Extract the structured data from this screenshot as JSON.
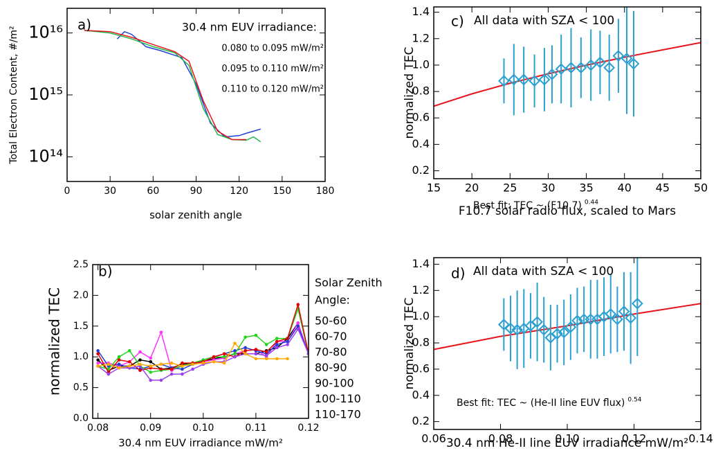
{
  "chart_data": [
    {
      "type": "line",
      "panel_label": "a)",
      "log_y": true,
      "xlabel": "solar zenith angle",
      "ylabel": "Total Electron Content, #/m²",
      "legend_title": [
        "30.4 nm EUV irradiance:"
      ],
      "xlim": [
        0,
        180
      ],
      "xticks": [
        0,
        30,
        60,
        90,
        120,
        150,
        180
      ],
      "ylim": [
        40000000000000.0,
        2.5e+16
      ],
      "yticks": [
        {
          "value": 100000000000000.0,
          "label": "10¹⁴"
        },
        {
          "value": 1000000000000000.0,
          "label": "10¹⁵"
        },
        {
          "value": 1e+16,
          "label": "10¹⁶"
        }
      ],
      "series": [
        {
          "name": "0.080 to 0.095 mW/m²",
          "color": "#1f3fd6",
          "x": [
            35,
            40,
            45,
            55,
            65,
            80,
            90,
            100,
            110,
            120,
            125,
            135
          ],
          "values": [
            8000000000000000.0,
            1.05e+16,
            9500000000000000.0,
            6000000000000000.0,
            5200000000000000.0,
            4000000000000000.0,
            1500000000000000.0,
            350000000000000.0,
            210000000000000.0,
            220000000000000.0,
            240000000000000.0,
            280000000000000.0
          ]
        },
        {
          "name": "0.095 to 0.110 mW/m²",
          "color": "#1fb84a",
          "x": [
            12,
            30,
            45,
            60,
            75,
            85,
            95,
            105,
            115,
            125,
            130,
            135
          ],
          "values": [
            1.1e+16,
            1e+16,
            8000000000000000.0,
            6000000000000000.0,
            4800000000000000.0,
            3000000000000000.0,
            600000000000000.0,
            230000000000000.0,
            190000000000000.0,
            185000000000000.0,
            210000000000000.0,
            175000000000000.0
          ]
        },
        {
          "name": "0.110 to 0.120 mW/m²",
          "color": "#e8141b",
          "x": [
            12,
            30,
            45,
            60,
            75,
            85,
            95,
            105,
            115,
            125
          ],
          "values": [
            1.1e+16,
            1.05e+16,
            8500000000000000.0,
            6500000000000000.0,
            5000000000000000.0,
            3500000000000000.0,
            800000000000000.0,
            260000000000000.0,
            190000000000000.0,
            190000000000000.0
          ]
        }
      ]
    },
    {
      "type": "line",
      "panel_label": "b)",
      "markers": true,
      "xlabel": "30.4 nm EUV irradiance mW/m²",
      "ylabel": "normalized TEC",
      "legend_title": [
        "Solar Zenith",
        "Angle:"
      ],
      "xlim": [
        0.079,
        0.12
      ],
      "xticks": [
        0.08,
        0.09,
        {
          "value": 0.1,
          "label": "0.10"
        },
        0.11,
        0.12
      ],
      "ylim": [
        0,
        2.5
      ],
      "yticks": [
        {
          "value": 0,
          "label": "0.0"
        },
        0.5,
        {
          "value": 1,
          "label": "1.0"
        },
        1.5,
        {
          "value": 2,
          "label": "2.0"
        },
        2.5
      ],
      "x": [
        0.08,
        0.082,
        0.084,
        0.086,
        0.088,
        0.09,
        0.092,
        0.094,
        0.096,
        0.098,
        0.1,
        0.102,
        0.104,
        0.106,
        0.108,
        0.11,
        0.112,
        0.114,
        0.116,
        0.118,
        0.12
      ],
      "series": [
        {
          "name": "50-60",
          "color": "#000000",
          "values": [
            0.95,
            0.78,
            0.85,
            0.85,
            0.95,
            0.92,
            0.8,
            0.82,
            0.88,
            0.9,
            0.92,
            0.97,
            1.0,
            1.05,
            1.05,
            1.05,
            1.1,
            1.15,
            1.3,
            1.55,
            1.05
          ]
        },
        {
          "name": "60-70",
          "color": "#ff33ff",
          "values": [
            0.9,
            0.9,
            0.85,
            0.92,
            1.08,
            0.98,
            1.4,
            0.78,
            0.85,
            0.88,
            0.92,
            0.95,
            0.98,
            1.05,
            1.1,
            1.12,
            1.0,
            1.25,
            1.25,
            1.55,
            1.05
          ]
        },
        {
          "name": "70-80",
          "color": "#1f3fd6",
          "values": [
            1.1,
            0.85,
            0.88,
            0.82,
            0.8,
            0.85,
            0.88,
            0.82,
            0.8,
            0.88,
            0.95,
            1.0,
            1.05,
            1.1,
            1.15,
            1.1,
            1.05,
            1.2,
            1.25,
            1.5,
            1.05
          ]
        },
        {
          "name": "80-90",
          "color": "#22d41a",
          "values": [
            0.85,
            0.8,
            1.0,
            1.1,
            0.85,
            0.75,
            0.78,
            0.8,
            0.85,
            0.9,
            0.95,
            1.0,
            1.0,
            1.05,
            1.32,
            1.35,
            1.2,
            1.3,
            1.3,
            1.78,
            1.05
          ]
        },
        {
          "name": "90-100",
          "color": "#e00000",
          "values": [
            1.05,
            0.75,
            0.95,
            0.92,
            0.78,
            0.82,
            0.8,
            0.8,
            0.9,
            0.9,
            0.92,
            1.0,
            1.05,
            1.0,
            1.1,
            1.12,
            1.08,
            1.25,
            1.3,
            1.85,
            1.05
          ]
        },
        {
          "name": "100-110",
          "color": "#9a40f0",
          "values": [
            0.85,
            0.72,
            0.82,
            0.82,
            0.85,
            0.62,
            0.62,
            0.72,
            0.72,
            0.8,
            0.88,
            0.92,
            0.92,
            1.0,
            1.05,
            1.05,
            1.02,
            1.15,
            1.2,
            1.45,
            1.05
          ]
        },
        {
          "name": "110-170",
          "color": "#ffaa00",
          "values": [
            0.85,
            0.88,
            0.82,
            0.85,
            0.88,
            0.85,
            0.88,
            0.9,
            0.85,
            0.88,
            0.9,
            0.92,
            0.9,
            1.22,
            1.05,
            0.97,
            0.97,
            0.97,
            0.97,
            null,
            null
          ]
        }
      ]
    },
    {
      "type": "scatter",
      "panel_label": "c)",
      "annotation": "All data with SZA < 100",
      "fit_label": "Best fit: TEC ~ (F10.7)",
      "fit_exponent": "0.44",
      "xlabel": "F10.7 solar radio flux, scaled to Mars",
      "ylabel": "normalized TEC",
      "xlim": [
        15,
        50
      ],
      "xticks": [
        15,
        20,
        25,
        30,
        35,
        40,
        45,
        50
      ],
      "ylim": [
        0.14,
        1.44
      ],
      "yticks": [
        0.2,
        0.4,
        0.6,
        0.8,
        {
          "value": 1,
          "label": "1.0"
        },
        1.2,
        1.4
      ],
      "color": "#2a9fd0",
      "x": [
        24.2,
        25.5,
        26.8,
        28.2,
        29.5,
        30.5,
        31.7,
        33.0,
        34.3,
        35.6,
        36.8,
        38.0,
        39.2,
        40.3,
        41.2
      ],
      "values": [
        0.88,
        0.89,
        0.89,
        0.88,
        0.89,
        0.93,
        0.97,
        0.98,
        0.98,
        1.0,
        1.02,
        0.98,
        1.07,
        1.05,
        1.01
      ],
      "errors": [
        0.17,
        0.27,
        0.25,
        0.2,
        0.24,
        0.22,
        0.26,
        0.3,
        0.23,
        0.27,
        0.24,
        0.25,
        0.28,
        0.42,
        0.4
      ],
      "fit": {
        "color": "#e8141b",
        "x": [
          15,
          20,
          25,
          30,
          35,
          40,
          45,
          50
        ],
        "values": [
          0.689,
          0.782,
          0.863,
          0.934,
          0.999,
          1.059,
          1.115,
          1.17
        ]
      }
    },
    {
      "type": "scatter",
      "panel_label": "d)",
      "annotation": "All data with SZA < 100",
      "fit_label": "Best fit: TEC ~ (He-II line EUV flux)",
      "fit_exponent": "0.54",
      "xlabel": "30.4 nm He-II line EUV irradiance mW/m²",
      "ylabel": "normalized TEC",
      "xlim": [
        0.06,
        0.14
      ],
      "xticks": [
        0.06,
        0.08,
        {
          "value": 0.1,
          "label": "0.10"
        },
        0.12,
        0.14
      ],
      "ylim": [
        0.14,
        1.45
      ],
      "yticks": [
        0.2,
        0.4,
        0.6,
        0.8,
        {
          "value": 1,
          "label": "1.0"
        },
        1.2,
        1.4
      ],
      "color": "#2a9fd0",
      "x": [
        0.081,
        0.083,
        0.085,
        0.087,
        0.089,
        0.091,
        0.093,
        0.095,
        0.097,
        0.099,
        0.101,
        0.103,
        0.105,
        0.107,
        0.109,
        0.111,
        0.113,
        0.115,
        0.117,
        0.119,
        0.121
      ],
      "values": [
        0.94,
        0.91,
        0.9,
        0.91,
        0.93,
        0.96,
        0.9,
        0.84,
        0.87,
        0.88,
        0.92,
        0.97,
        0.98,
        0.98,
        0.98,
        1.0,
        1.02,
        0.98,
        1.04,
        0.99,
        1.1
      ],
      "errors": [
        0.2,
        0.25,
        0.3,
        0.3,
        0.25,
        0.3,
        0.25,
        0.25,
        0.22,
        0.25,
        0.25,
        0.25,
        0.25,
        0.3,
        0.3,
        0.3,
        0.3,
        0.25,
        0.3,
        0.35,
        0.4
      ],
      "fit": {
        "color": "#e8141b",
        "x": [
          0.06,
          0.08,
          0.1,
          0.12,
          0.14
        ],
        "values": [
          0.75,
          0.85,
          0.93,
          1.02,
          1.1
        ]
      }
    }
  ]
}
